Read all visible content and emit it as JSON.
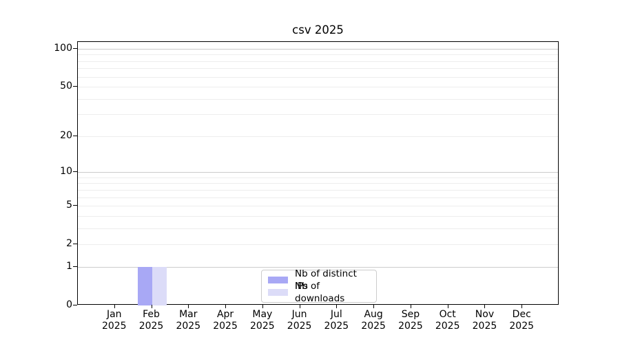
{
  "title": "csv 2025",
  "chart_data": {
    "type": "bar",
    "title": "csv 2025",
    "categories": [
      "Jan 2025",
      "Feb 2025",
      "Mar 2025",
      "Apr 2025",
      "May 2025",
      "Jun 2025",
      "Jul 2025",
      "Aug 2025",
      "Sep 2025",
      "Oct 2025",
      "Nov 2025",
      "Dec 2025"
    ],
    "series": [
      {
        "name": "Nb of distinct IPs",
        "color": "#a8a8f5",
        "values": [
          0,
          1,
          0,
          0,
          0,
          0,
          0,
          0,
          0,
          0,
          0,
          0
        ]
      },
      {
        "name": "Nb of downloads",
        "color": "#dcdcf8",
        "values": [
          0,
          1,
          0,
          0,
          0,
          0,
          0,
          0,
          0,
          0,
          0,
          0
        ]
      }
    ],
    "xlabel": "",
    "ylabel": "",
    "yscale": "log1p",
    "ylim": [
      0,
      113
    ],
    "y_tick_values": [
      100,
      50,
      20,
      10,
      5,
      2,
      1,
      0
    ],
    "y_major_gridlines": [
      1,
      10,
      100
    ],
    "y_minor_gridlines": [
      2,
      3,
      4,
      5,
      6,
      7,
      8,
      9,
      20,
      30,
      40,
      50,
      60,
      70,
      80,
      90
    ],
    "grid": true,
    "legend": {
      "position": "lower center",
      "entries": [
        "Nb of distinct IPs",
        "Nb of downloads"
      ]
    }
  },
  "colors": {
    "background": "#ffffff",
    "axis": "#000000",
    "grid_major": "#cbcbcb",
    "grid_minor": "#ededed",
    "legend_border": "#cccccc",
    "text": "#000000"
  }
}
